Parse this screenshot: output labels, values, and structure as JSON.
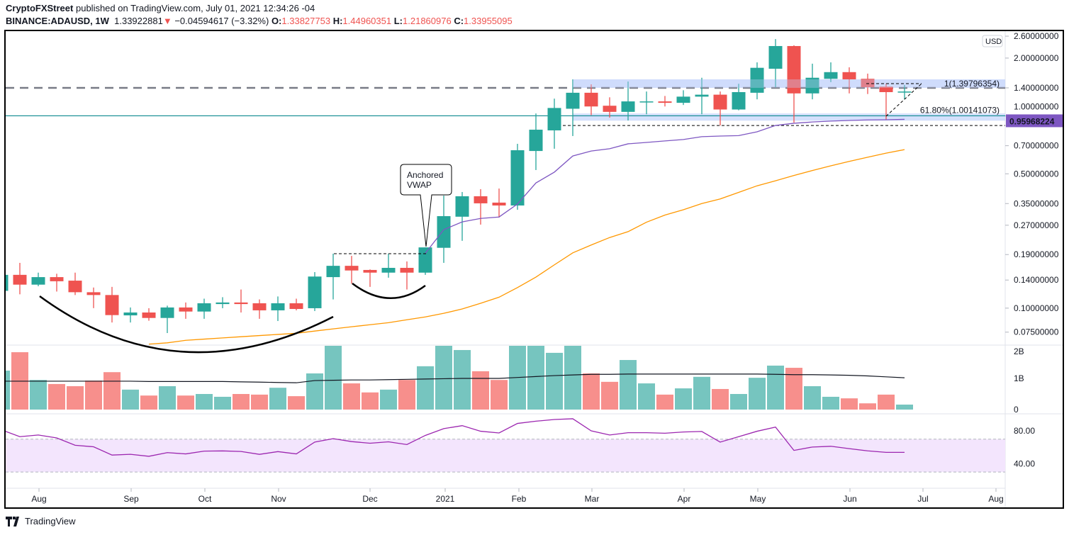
{
  "header": {
    "publisher": "CryptoFXStreet",
    "published_text": "published on TradingView.com, July 01, 2021 12:34:26 -04",
    "symbol": "BINANCE:ADAUSD, 1W",
    "last_price": "1.33922881",
    "change": "−0.04594617 (−3.32%)",
    "o_label": "O:",
    "o_value": "1.33827753",
    "h_label": "H:",
    "h_value": "1.44960351",
    "l_label": "L:",
    "l_value": "1.21860976",
    "c_label": "C:",
    "c_value": "1.33955095",
    "direction_icon": "triangle-down-icon"
  },
  "footer": {
    "logo_text": "TradingView"
  },
  "colors": {
    "up": "#26a69a",
    "down": "#ef5350",
    "vwap": "#7e57c2",
    "ma": "#ff9800",
    "rsi": "#9c27b0",
    "rsi_band": "#f3e5fd",
    "zone": "#c5d5fb"
  },
  "chart_data": [
    {
      "type": "candlestick",
      "title": "",
      "currency": "USD",
      "scale": "log",
      "y_ticks": [
        "2.60000000",
        "2.00000000",
        "1.40000000",
        "1.00000000",
        "0.70000000",
        "0.50000000",
        "0.35000000",
        "0.27000000",
        "0.19000000",
        "0.14000000",
        "0.10000000",
        "0.07500000"
      ],
      "y_tick_values": [
        2.6,
        2.0,
        1.4,
        1.0,
        0.7,
        0.5,
        0.35,
        0.27,
        0.19,
        0.14,
        0.1,
        0.075
      ],
      "x_ticks": [
        "Aug",
        "Sep",
        "Oct",
        "Nov",
        "Dec",
        "2021",
        "Feb",
        "Mar",
        "Apr",
        "May",
        "Jun",
        "Jul",
        "Aug"
      ],
      "current_value_label": "0.95968224",
      "current_value": 0.95968224,
      "fib_labels": [
        "1(1.39796354)",
        "61.80%(1.00141073)"
      ],
      "fib_levels": [
        1.39796354,
        1.00141073
      ],
      "resistance_level": 1.4,
      "support_level": 0.892,
      "callout": [
        "Anchored",
        "VWAP"
      ],
      "ohlc": [
        [
          0.123,
          0.154,
          0.119,
          0.149
        ],
        [
          0.149,
          0.172,
          0.118,
          0.1325
        ],
        [
          0.1325,
          0.153,
          0.13,
          0.145
        ],
        [
          0.145,
          0.151,
          0.122,
          0.138
        ],
        [
          0.139,
          0.153,
          0.117,
          0.121
        ],
        [
          0.121,
          0.128,
          0.1,
          0.117
        ],
        [
          0.117,
          0.129,
          0.0842,
          0.092
        ],
        [
          0.0917,
          0.1008,
          0.0842,
          0.0949
        ],
        [
          0.0949,
          0.0999,
          0.086,
          0.0889
        ],
        [
          0.0889,
          0.103,
          0.0742,
          0.1008
        ],
        [
          0.1008,
          0.107,
          0.088,
          0.096
        ],
        [
          0.096,
          0.112,
          0.088,
          0.106
        ],
        [
          0.105,
          0.114,
          0.0999,
          0.107
        ],
        [
          0.107,
          0.125,
          0.0949,
          0.105
        ],
        [
          0.106,
          0.111,
          0.088,
          0.0974
        ],
        [
          0.0974,
          0.115,
          0.0857,
          0.106
        ],
        [
          0.106,
          0.112,
          0.0974,
          0.099
        ],
        [
          0.0999,
          0.154,
          0.0966,
          0.146
        ],
        [
          0.145,
          0.192,
          0.111,
          0.166
        ],
        [
          0.166,
          0.187,
          0.134,
          0.157
        ],
        [
          0.158,
          0.159,
          0.129,
          0.153
        ],
        [
          0.153,
          0.192,
          0.144,
          0.162
        ],
        [
          0.162,
          0.175,
          0.125,
          0.153
        ],
        [
          0.153,
          0.207,
          0.149,
          0.207
        ],
        [
          0.206,
          0.385,
          0.172,
          0.301
        ],
        [
          0.299,
          0.402,
          0.224,
          0.382
        ],
        [
          0.382,
          0.416,
          0.272,
          0.351
        ],
        [
          0.354,
          0.419,
          0.296,
          0.342
        ],
        [
          0.342,
          0.716,
          0.325,
          0.663
        ],
        [
          0.657,
          1.03,
          0.523,
          0.848
        ],
        [
          0.841,
          1.23,
          0.675,
          1.1
        ],
        [
          1.09,
          1.55,
          0.786,
          1.32
        ],
        [
          1.32,
          1.46,
          1.01,
          1.12
        ],
        [
          1.13,
          1.25,
          0.98,
          1.05
        ],
        [
          1.05,
          1.51,
          0.947,
          1.19
        ],
        [
          1.18,
          1.34,
          1.02,
          1.19
        ],
        [
          1.19,
          1.27,
          1.12,
          1.17
        ],
        [
          1.17,
          1.36,
          1.14,
          1.26
        ],
        [
          1.26,
          1.58,
          1.02,
          1.29
        ],
        [
          1.29,
          1.34,
          0.892,
          1.08
        ],
        [
          1.08,
          1.47,
          1.07,
          1.33
        ],
        [
          1.32,
          1.9,
          1.22,
          1.78
        ],
        [
          1.76,
          2.51,
          1.41,
          2.31
        ],
        [
          2.31,
          2.33,
          0.923,
          1.31
        ],
        [
          1.31,
          1.87,
          1.22,
          1.58
        ],
        [
          1.56,
          1.9,
          1.5,
          1.69
        ],
        [
          1.69,
          1.79,
          1.31,
          1.55
        ],
        [
          1.56,
          1.66,
          1.3,
          1.41
        ],
        [
          1.42,
          1.47,
          0.955,
          1.33
        ],
        [
          1.33827753,
          1.44960351,
          1.21860976,
          1.33955095
        ]
      ],
      "anchored_vwap": {
        "start_index": 23,
        "values": [
          0.193,
          0.256,
          0.281,
          0.293,
          0.298,
          0.348,
          0.448,
          0.51,
          0.619,
          0.657,
          0.675,
          0.716,
          0.728,
          0.741,
          0.754,
          0.78,
          0.786,
          0.79,
          0.827,
          0.892,
          0.916,
          0.93,
          0.94,
          0.947,
          0.953,
          0.955,
          0.9597
        ]
      },
      "moving_average": {
        "start_index": 8,
        "values": [
          0.065,
          0.066,
          0.068,
          0.069,
          0.07,
          0.071,
          0.072,
          0.073,
          0.074,
          0.076,
          0.078,
          0.08,
          0.082,
          0.084,
          0.087,
          0.09,
          0.094,
          0.099,
          0.106,
          0.114,
          0.128,
          0.145,
          0.168,
          0.194,
          0.213,
          0.233,
          0.25,
          0.28,
          0.305,
          0.325,
          0.35,
          0.37,
          0.4,
          0.433,
          0.46,
          0.49,
          0.52,
          0.55,
          0.58,
          0.61,
          0.64,
          0.668
        ]
      }
    },
    {
      "type": "bar",
      "title": "",
      "y_ticks": [
        "2B",
        "1B",
        "0"
      ],
      "y_tick_values": [
        2,
        1,
        0
      ],
      "unit": "B",
      "values": [
        1.25,
        1.84,
        0.95,
        0.82,
        0.75,
        0.93,
        1.2,
        0.64,
        0.45,
        0.75,
        0.45,
        0.5,
        0.41,
        0.5,
        0.48,
        0.7,
        0.43,
        1.16,
        2.2,
        0.84,
        0.55,
        0.64,
        0.95,
        1.39,
        2.3,
        1.91,
        1.23,
        0.95,
        2.5,
        2.4,
        1.82,
        2.1,
        1.16,
        0.89,
        1.59,
        0.84,
        0.48,
        0.68,
        1.05,
        0.66,
        0.5,
        1.02,
        1.41,
        1.34,
        0.75,
        0.41,
        0.36,
        0.2,
        0.48,
        0.16
      ],
      "ma": [
        0.91,
        0.91,
        0.91,
        0.91,
        0.91,
        0.91,
        0.91,
        0.91,
        0.9,
        0.9,
        0.9,
        0.9,
        0.9,
        0.89,
        0.88,
        0.87,
        0.86,
        0.93,
        0.94,
        0.95,
        0.95,
        0.96,
        0.97,
        0.98,
        0.99,
        1.0,
        1.0,
        1.0,
        1.03,
        1.06,
        1.09,
        1.11,
        1.13,
        1.13,
        1.14,
        1.14,
        1.14,
        1.14,
        1.14,
        1.14,
        1.14,
        1.14,
        1.13,
        1.12,
        1.12,
        1.11,
        1.1,
        1.08,
        1.05,
        1.02
      ]
    },
    {
      "type": "line",
      "title": "",
      "y_ticks": [
        "80.00",
        "40.00"
      ],
      "y_tick_values": [
        80,
        40
      ],
      "band": [
        30,
        70
      ],
      "values": [
        81.3,
        73,
        75,
        71.5,
        62.5,
        60.7,
        50.6,
        51.5,
        49.1,
        53.6,
        52,
        55.4,
        55.7,
        55,
        51.5,
        54.8,
        52,
        66.4,
        70.6,
        67,
        65,
        66.7,
        63.4,
        74.5,
        82.8,
        86.4,
        79.6,
        77.5,
        89.1,
        91.8,
        93.9,
        94.8,
        80.1,
        75,
        77.8,
        77.8,
        77.2,
        78.7,
        79.3,
        66.4,
        73,
        79.6,
        84.6,
        56.3,
        60.4,
        61.3,
        58.4,
        55.7,
        53.9,
        53.9
      ]
    }
  ]
}
